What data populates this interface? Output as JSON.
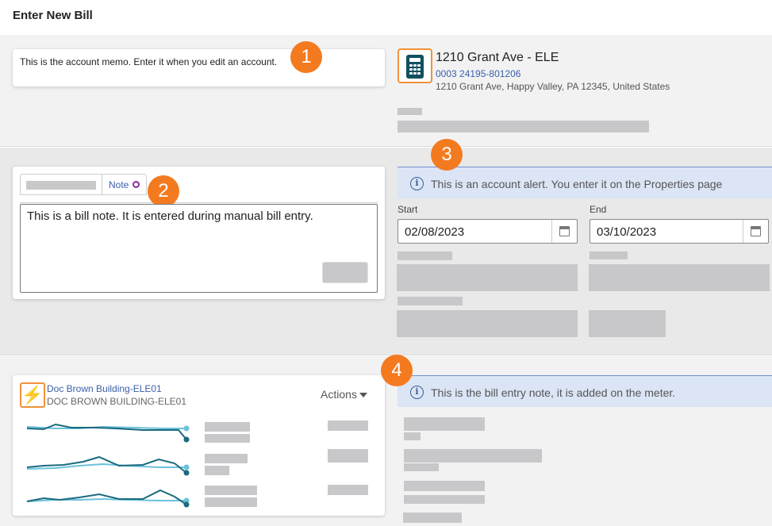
{
  "page": {
    "title": "Enter New Bill"
  },
  "account_memo": {
    "text": "This is the account memo. Enter it when you edit an account."
  },
  "account": {
    "name": "1210 Grant Ave - ELE",
    "number": "0003 24195-801206",
    "address": "1210 Grant Ave, Happy Valley, PA 12345, United States",
    "icon": "calculator-icon"
  },
  "badges": [
    "1",
    "2",
    "3",
    "4"
  ],
  "bill_note": {
    "tab_label": "Note",
    "text": "This is a bill note. It is entered during manual bill entry."
  },
  "account_alert": {
    "text": "This is an account alert. You enter it on the Properties page"
  },
  "dates": {
    "start_label": "Start",
    "start_value": "02/08/2023",
    "end_label": "End",
    "end_value": "03/10/2023"
  },
  "meter": {
    "link": "Doc Brown Building-ELE01",
    "code": "DOC BROWN BUILDING-ELE01",
    "actions_label": "Actions",
    "icon": "lightning-icon"
  },
  "meter_note": {
    "text": "This is the bill entry note, it is added on the meter."
  },
  "colors": {
    "accent_orange": "#f47a20",
    "link_blue": "#3b5fa8",
    "alert_bg": "#dbe5f5",
    "spark_dark": "#1b6a7e",
    "spark_light": "#6cc1dc"
  }
}
